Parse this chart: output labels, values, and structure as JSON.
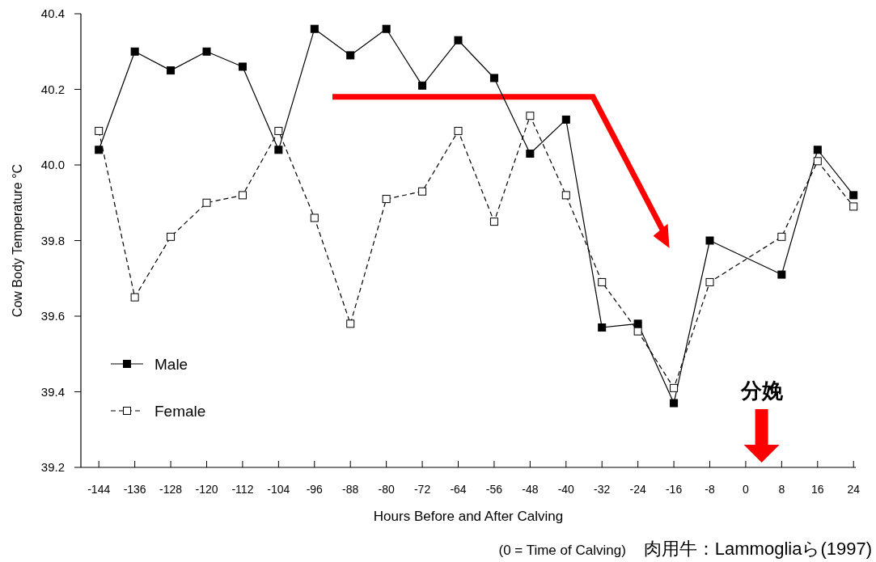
{
  "chart_data": {
    "type": "line",
    "xlabel": "Hours Before and After Calving",
    "ylabel": "Cow Body Temperature °C",
    "xlim": [
      -148,
      24.5
    ],
    "xticks": [
      -144,
      -136,
      -128,
      -120,
      -112,
      -104,
      -96,
      -88,
      -80,
      -72,
      -64,
      -56,
      -48,
      -40,
      -32,
      -24,
      -16,
      -8,
      0,
      8,
      16,
      24
    ],
    "ylim": [
      39.2,
      40.4
    ],
    "yticks": [
      39.2,
      39.4,
      39.6,
      39.8,
      {
        "value": 40.0,
        "label": "40.0"
      },
      40.2,
      40.4
    ],
    "grid": false,
    "legend": "bottom left",
    "marker": "square",
    "series": [
      {
        "name": "Male",
        "color": "#000000",
        "line_style": "solid",
        "x": [
          -144,
          -136,
          -128,
          -120,
          -112,
          -104,
          -96,
          -88,
          -80,
          -72,
          -64,
          -56,
          -48,
          -40,
          -32,
          -24,
          -16,
          -8,
          8,
          16,
          24
        ],
        "values": [
          40.04,
          40.3,
          40.25,
          40.3,
          40.26,
          40.04,
          40.36,
          40.29,
          40.36,
          40.21,
          40.33,
          40.23,
          40.03,
          40.12,
          39.57,
          39.58,
          39.37,
          39.8,
          39.71,
          40.04,
          39.92
        ]
      },
      {
        "name": "Female",
        "color": "#000000",
        "line_style": "dashed",
        "x": [
          -144,
          -136,
          -128,
          -120,
          -112,
          -104,
          -96,
          -88,
          -80,
          -72,
          -64,
          -56,
          -48,
          -40,
          -32,
          -24,
          -16,
          -8,
          8,
          16,
          24
        ],
        "values": [
          40.09,
          39.65,
          39.81,
          39.9,
          39.92,
          40.09,
          39.86,
          39.58,
          39.91,
          39.93,
          40.09,
          39.85,
          40.13,
          39.92,
          39.69,
          39.56,
          39.41,
          39.69,
          39.81,
          40.01,
          39.89
        ]
      }
    ],
    "annotations": [
      "分娩",
      "(0 = Time of Calving)",
      "肉用牛：Lammogliaら(1997)"
    ]
  }
}
